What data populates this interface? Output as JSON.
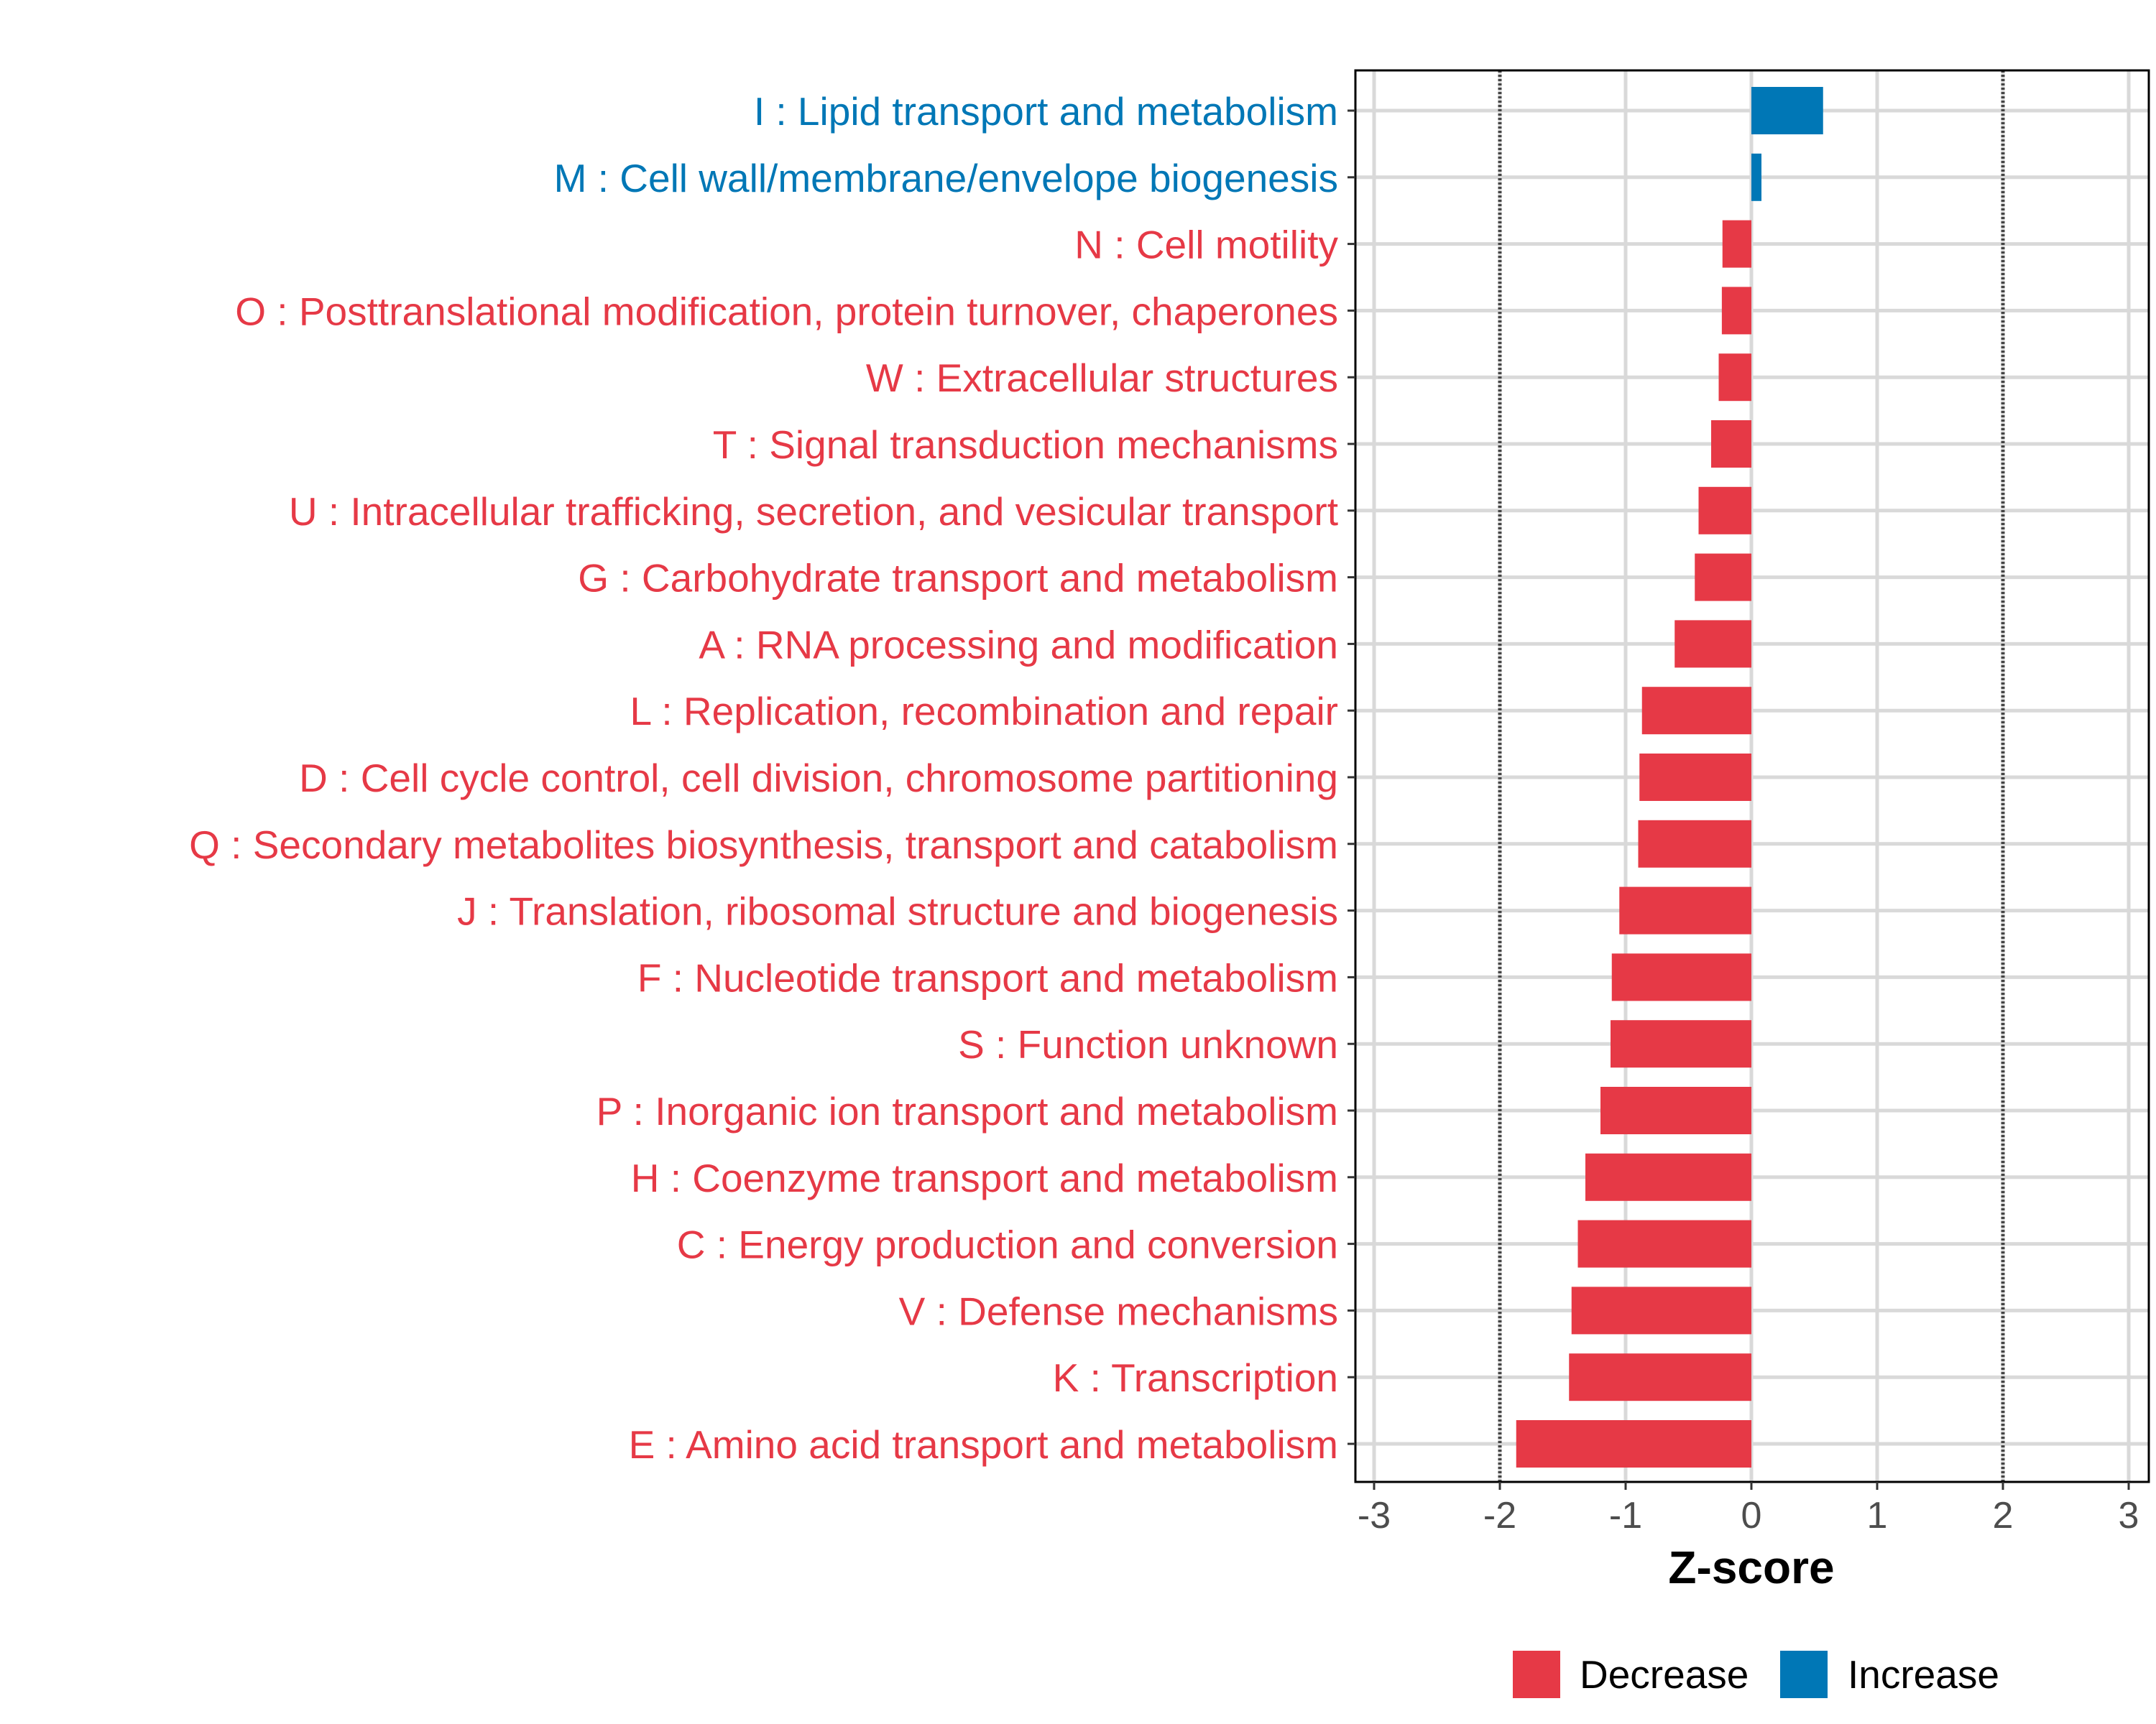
{
  "chart_data": {
    "type": "bar",
    "orientation": "horizontal",
    "title": "",
    "xlabel": "Z-score",
    "ylabel": "",
    "xlim": [
      -3.1,
      3.1
    ],
    "xticks": [
      -3,
      -2,
      -1,
      0,
      1,
      2,
      3
    ],
    "xtick_labels": [
      "-3",
      "-2",
      "-1",
      "0",
      "1",
      "2",
      "3"
    ],
    "reference_lines": [
      -2,
      2
    ],
    "grid": true,
    "legend": {
      "placement": "bottom",
      "entries": [
        {
          "label": "Decrease",
          "color": "#E63946"
        },
        {
          "label": "Increase",
          "color": "#0077B6"
        }
      ]
    },
    "categories": [
      "I : Lipid transport and metabolism",
      "M : Cell wall/membrane/envelope biogenesis",
      "N : Cell motility",
      "O : Posttranslational modification, protein turnover, chaperones",
      "W : Extracellular structures",
      "T : Signal transduction mechanisms",
      "U : Intracellular trafficking, secretion, and vesicular transport",
      "G : Carbohydrate transport and metabolism",
      "A : RNA processing and modification",
      "L : Replication, recombination and repair",
      "D : Cell cycle control, cell division, chromosome partitioning",
      "Q : Secondary metabolites biosynthesis, transport and catabolism",
      "J : Translation, ribosomal structure and biogenesis",
      "F : Nucleotide transport and metabolism",
      "S : Function unknown",
      "P : Inorganic ion transport and metabolism",
      "H : Coenzyme transport and metabolism",
      "C : Energy production and conversion",
      "V : Defense mechanisms",
      "K : Transcription",
      "E : Amino acid transport and metabolism"
    ],
    "values": [
      0.57,
      0.08,
      -0.23,
      -0.235,
      -0.26,
      -0.32,
      -0.42,
      -0.45,
      -0.61,
      -0.87,
      -0.89,
      -0.9,
      -1.05,
      -1.11,
      -1.12,
      -1.2,
      -1.32,
      -1.38,
      -1.43,
      -1.45,
      -1.87
    ],
    "groups": [
      "Increase",
      "Increase",
      "Decrease",
      "Decrease",
      "Decrease",
      "Decrease",
      "Decrease",
      "Decrease",
      "Decrease",
      "Decrease",
      "Decrease",
      "Decrease",
      "Decrease",
      "Decrease",
      "Decrease",
      "Decrease",
      "Decrease",
      "Decrease",
      "Decrease",
      "Decrease",
      "Decrease"
    ]
  }
}
